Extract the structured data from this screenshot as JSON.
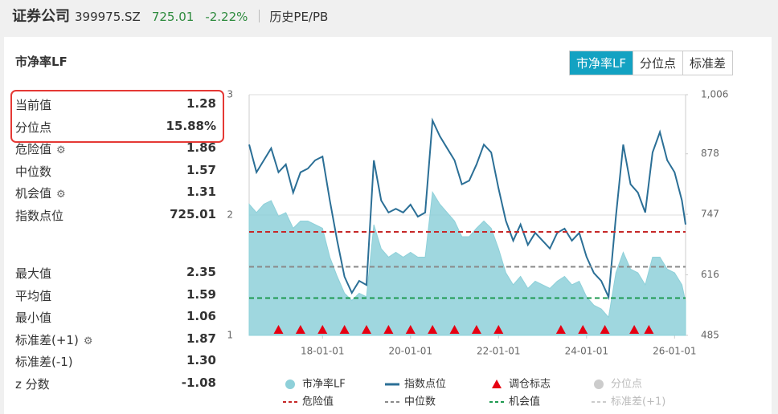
{
  "header": {
    "title": "证券公司",
    "code": "399975.SZ",
    "price": "725.01",
    "change": "-2.22%",
    "link": "历史PE/PB"
  },
  "panel": {
    "title": "市净率LF",
    "tabs": [
      "市净率LF",
      "分位点",
      "标准差"
    ],
    "stats": [
      {
        "label": "当前值",
        "value": "1.28"
      },
      {
        "label": "分位点",
        "value": "15.88%"
      },
      {
        "label": "危险值",
        "value": "1.86",
        "settings_icon": true
      },
      {
        "label": "中位数",
        "value": "1.57"
      },
      {
        "label": "机会值",
        "value": "1.31",
        "settings_icon": true
      },
      {
        "label": "指数点位",
        "value": "725.01"
      },
      {
        "label": "最大值",
        "value": "2.35"
      },
      {
        "label": "平均值",
        "value": "1.59"
      },
      {
        "label": "最小值",
        "value": "1.06"
      },
      {
        "label": "标准差(+1)",
        "value": "1.87",
        "settings_icon": true
      },
      {
        "label": "标准差(-1)",
        "value": "1.30"
      },
      {
        "label": "z 分数",
        "value": "-1.08"
      }
    ]
  },
  "chart_data": {
    "type": "area-line",
    "x": [
      "16-05-01",
      "16-07-01",
      "16-09-01",
      "16-11-01",
      "17-01-01",
      "17-03-01",
      "17-05-01",
      "17-07-01",
      "17-09-01",
      "17-11-01",
      "18-01-01",
      "18-03-01",
      "18-05-01",
      "18-07-01",
      "18-09-01",
      "18-11-01",
      "19-01-01",
      "19-03-01",
      "19-05-01",
      "19-07-01",
      "19-09-01",
      "19-11-01",
      "20-01-01",
      "20-03-01",
      "20-05-01",
      "20-07-01",
      "20-09-01",
      "20-11-01",
      "21-01-01",
      "21-03-01",
      "21-05-01",
      "21-07-01",
      "21-09-01",
      "21-11-01",
      "22-01-01",
      "22-03-01",
      "22-05-01",
      "22-07-01",
      "22-09-01",
      "22-11-01",
      "23-01-01",
      "23-03-01",
      "23-05-01",
      "23-07-01",
      "23-09-01",
      "23-11-01",
      "24-01-01",
      "24-03-01",
      "24-05-01",
      "24-07-01",
      "24-09-01",
      "24-11-01",
      "25-01-01",
      "25-03-01",
      "25-05-01",
      "25-07-01",
      "25-09-01",
      "25-11-01",
      "26-01-01",
      "26-03-01",
      "26-04-01"
    ],
    "series": [
      {
        "name": "市净率LF",
        "color": "#8ed0d9",
        "kind": "area",
        "values": [
          2.09,
          2.02,
          2.09,
          2.12,
          1.99,
          2.02,
          1.89,
          1.95,
          1.95,
          1.92,
          1.89,
          1.65,
          1.49,
          1.35,
          1.29,
          1.35,
          1.32,
          1.92,
          1.72,
          1.65,
          1.69,
          1.65,
          1.69,
          1.65,
          1.65,
          2.19,
          2.09,
          2.02,
          1.95,
          1.82,
          1.82,
          1.89,
          1.95,
          1.89,
          1.72,
          1.52,
          1.42,
          1.49,
          1.39,
          1.45,
          1.42,
          1.39,
          1.45,
          1.49,
          1.42,
          1.45,
          1.32,
          1.25,
          1.22,
          1.15,
          1.52,
          1.69,
          1.55,
          1.52,
          1.42,
          1.65,
          1.65,
          1.55,
          1.52,
          1.42,
          1.28
        ]
      },
      {
        "name": "指数点位",
        "color": "#2b6f96",
        "kind": "line",
        "axis": "y2",
        "values": [
          898,
          838,
          864,
          890,
          838,
          855,
          794,
          838,
          846,
          864,
          872,
          777,
          690,
          612,
          577,
          603,
          594,
          864,
          777,
          751,
          759,
          751,
          768,
          742,
          751,
          950,
          916,
          890,
          864,
          812,
          820,
          855,
          898,
          881,
          803,
          733,
          690,
          725,
          681,
          707,
          690,
          673,
          707,
          716,
          690,
          707,
          655,
          620,
          603,
          568,
          742,
          898,
          812,
          794,
          751,
          881,
          925,
          864,
          838,
          777,
          725
        ]
      }
    ],
    "markers": {
      "name": "调仓标志",
      "color": "#e60012",
      "x": [
        "17-01-01",
        "17-07-01",
        "18-01-01",
        "18-07-01",
        "19-01-01",
        "19-07-01",
        "20-01-01",
        "20-07-01",
        "21-01-01",
        "21-07-01",
        "22-01-01",
        "23-06-01",
        "23-12-01",
        "24-06-01",
        "25-02-01",
        "25-06-01"
      ]
    },
    "ref_lines": [
      {
        "name": "危险值",
        "value": 1.86,
        "color": "#c62828"
      },
      {
        "name": "中位数",
        "value": 1.57,
        "color": "#8a8a8a"
      },
      {
        "name": "机会值",
        "value": 1.31,
        "color": "#1e9a50"
      }
    ],
    "inactive_legend": [
      {
        "name": "分位点",
        "kind": "circle"
      },
      {
        "name": "标准差(+1)",
        "kind": "dash"
      }
    ],
    "xlim": [
      "16-05-01",
      "26-04-01"
    ],
    "xticks": [
      "18-01-01",
      "20-01-01",
      "22-01-01",
      "24-01-01",
      "26-01-01"
    ],
    "ylim": [
      1,
      3
    ],
    "yticks": [
      1,
      2,
      3
    ],
    "y2lim": [
      485,
      1006
    ],
    "y2ticks": [
      485,
      616,
      747,
      878,
      {
        "value": 1006,
        "label": "1,006"
      }
    ],
    "grid": true
  }
}
